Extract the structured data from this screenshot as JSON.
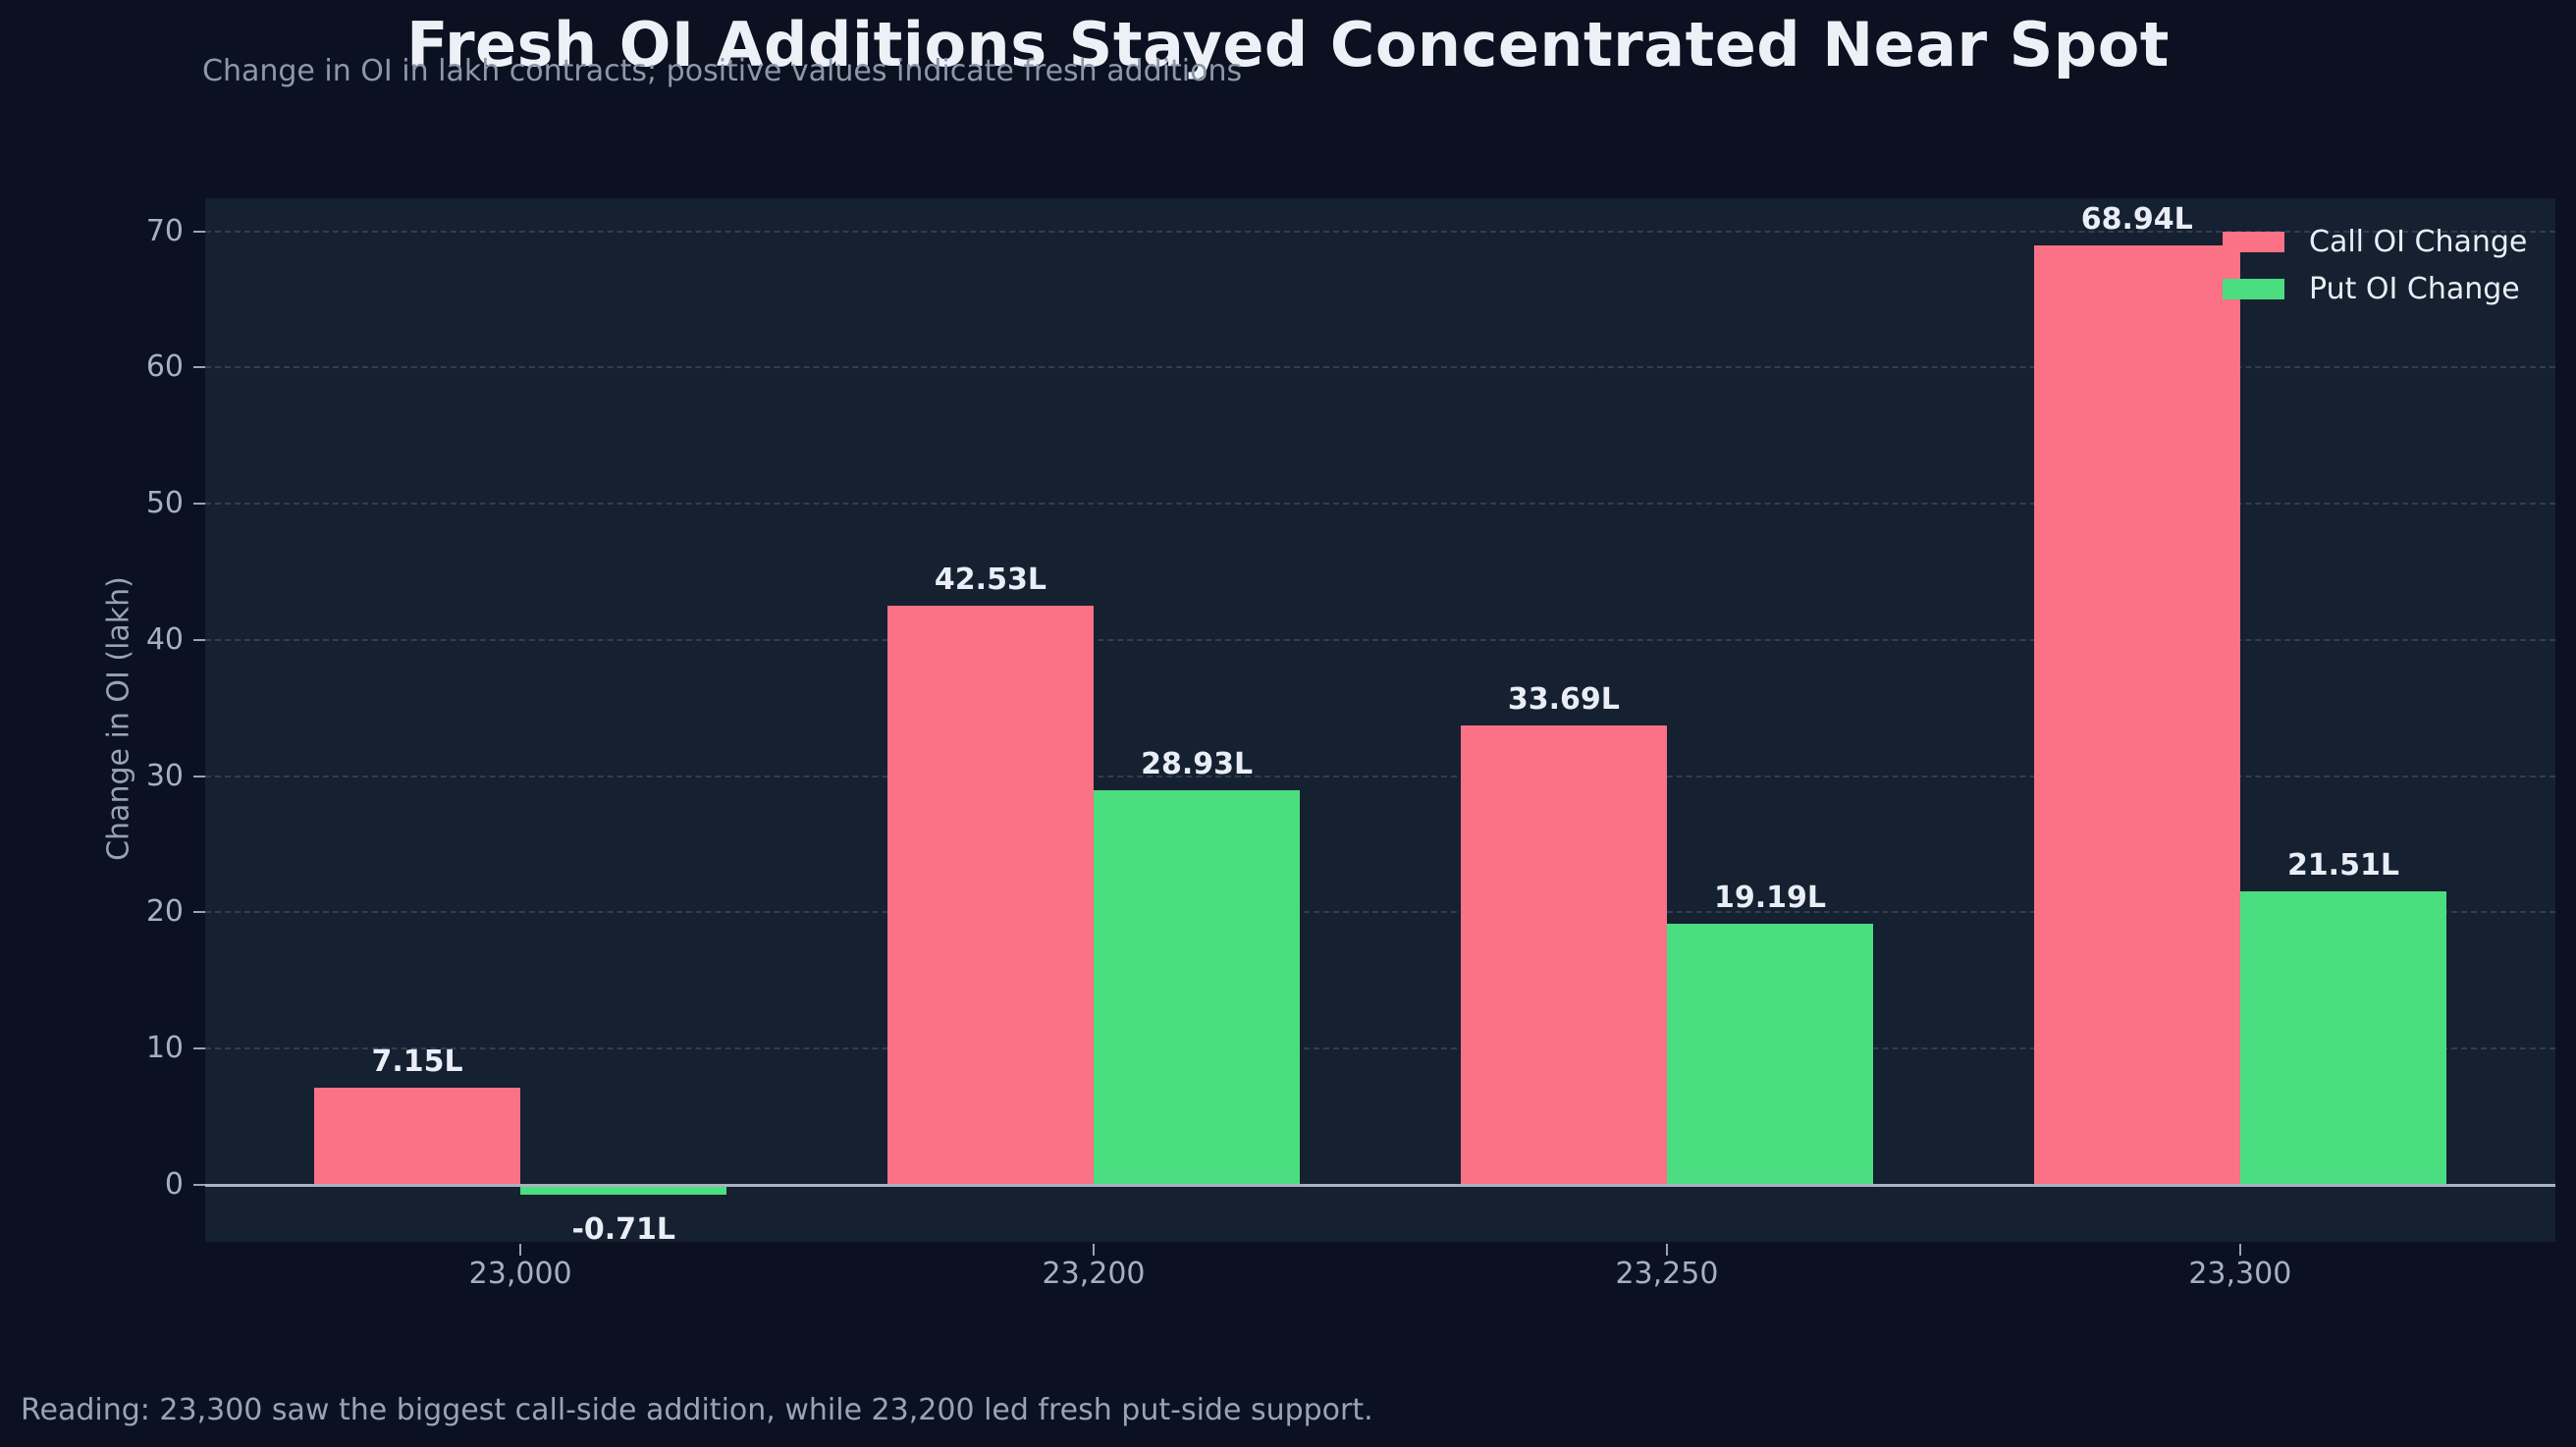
{
  "title": "Fresh OI Additions Stayed Concentrated Near Spot",
  "subtitle": "Change in OI in lakh contracts; positive values indicate fresh additions",
  "footer": "Reading: 23,300 saw the biggest call-side addition, while 23,200 led fresh put-side support.",
  "colors": {
    "page_bg": "#0b1120",
    "plot_bg": "#152030",
    "call": "#fb7185",
    "put": "#4ade80",
    "axis_line": "#a9b2c0",
    "grid": "rgba(155,170,192,0.22)"
  },
  "chart_data": {
    "type": "bar",
    "title": "Fresh OI Additions Stayed Concentrated Near Spot",
    "subtitle": "Change in OI in lakh contracts; positive values indicate fresh additions",
    "xlabel": "",
    "ylabel": "Change in OI (lakh)",
    "categories": [
      "23,000",
      "23,200",
      "23,250",
      "23,300"
    ],
    "series": [
      {
        "name": "Call OI Change",
        "color": "#fb7185",
        "values": [
          7.15,
          42.53,
          33.69,
          68.94
        ],
        "labels": [
          "7.15L",
          "42.53L",
          "33.69L",
          "68.94L"
        ]
      },
      {
        "name": "Put OI Change",
        "color": "#4ade80",
        "values": [
          -0.71,
          28.93,
          19.19,
          21.51
        ],
        "labels": [
          "-0.71L",
          "28.93L",
          "19.19L",
          "21.51L"
        ]
      }
    ],
    "y_ticks": [
      0,
      10,
      20,
      30,
      40,
      50,
      60,
      70
    ],
    "y_tick_labels": [
      "0",
      "10",
      "20",
      "30",
      "40",
      "50",
      "60",
      "70"
    ],
    "ylim": [
      -4.19,
      72.42
    ],
    "grid": "horizontal-dashed",
    "legend_position": "top-right",
    "annotation": "Reading: 23,300 saw the biggest call-side addition, while 23,200 led fresh put-side support."
  }
}
